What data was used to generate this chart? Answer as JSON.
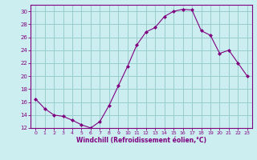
{
  "x": [
    0,
    1,
    2,
    3,
    4,
    5,
    6,
    7,
    8,
    9,
    10,
    11,
    12,
    13,
    14,
    15,
    16,
    17,
    18,
    19,
    20,
    21,
    22,
    23
  ],
  "y": [
    16.5,
    15.0,
    14.0,
    13.8,
    13.2,
    12.5,
    12.0,
    13.0,
    15.5,
    18.5,
    21.5,
    24.8,
    26.8,
    27.5,
    29.2,
    30.0,
    30.3,
    30.2,
    27.0,
    26.3,
    23.5,
    24.0,
    22.0,
    20.0
  ],
  "line_color": "#800080",
  "marker": "D",
  "marker_size": 2,
  "bg_color": "#cceef0",
  "grid_color": "#99cccc",
  "tick_color": "#800080",
  "label_color": "#800080",
  "xlabel": "Windchill (Refroidissement éolien,°C)",
  "ylim": [
    12,
    31
  ],
  "xlim_min": -0.5,
  "xlim_max": 23.5,
  "yticks": [
    12,
    14,
    16,
    18,
    20,
    22,
    24,
    26,
    28,
    30
  ],
  "xticks": [
    0,
    1,
    2,
    3,
    4,
    5,
    6,
    7,
    8,
    9,
    10,
    11,
    12,
    13,
    14,
    15,
    16,
    17,
    18,
    19,
    20,
    21,
    22,
    23
  ],
  "xlabel_fontsize": 5.5,
  "xtick_fontsize": 4.5,
  "ytick_fontsize": 5.0
}
